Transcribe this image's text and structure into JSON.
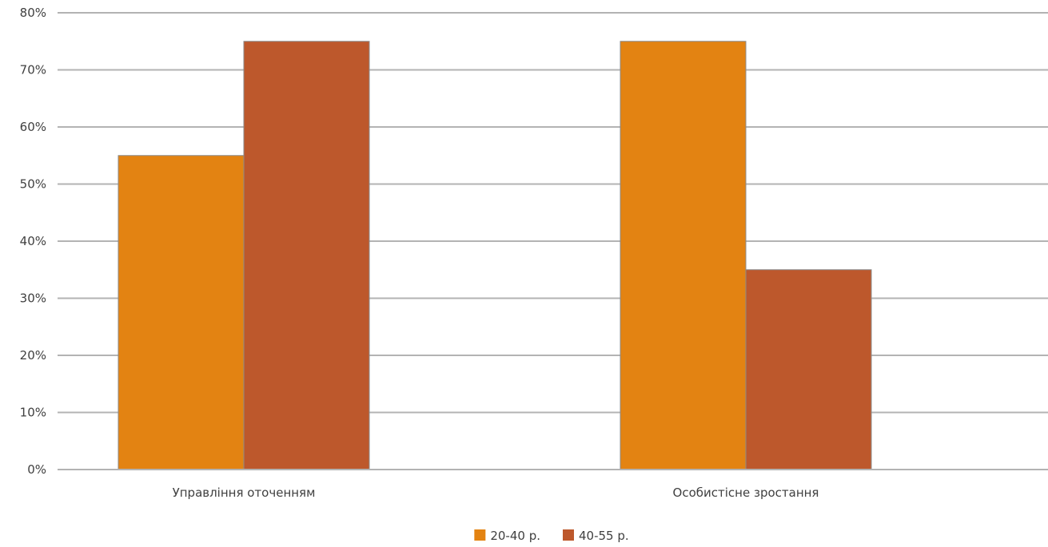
{
  "chart_data": {
    "type": "bar",
    "categories": [
      "Управління оточенням",
      "Особистісне зростання"
    ],
    "series": [
      {
        "name": "20-40 р.",
        "values": [
          55,
          75
        ],
        "color": "#E38312"
      },
      {
        "name": "40-55 р.",
        "values": [
          75,
          35
        ],
        "color": "#BD582C"
      }
    ],
    "ylim": [
      0,
      80
    ],
    "yticks": [
      0,
      10,
      20,
      30,
      40,
      50,
      60,
      70,
      80
    ],
    "ytick_suffix": "%",
    "grid": true,
    "legend_position": "bottom-center",
    "gridline_color": "#b3b3b3",
    "bar_outline_color": "#8a8a8a"
  }
}
